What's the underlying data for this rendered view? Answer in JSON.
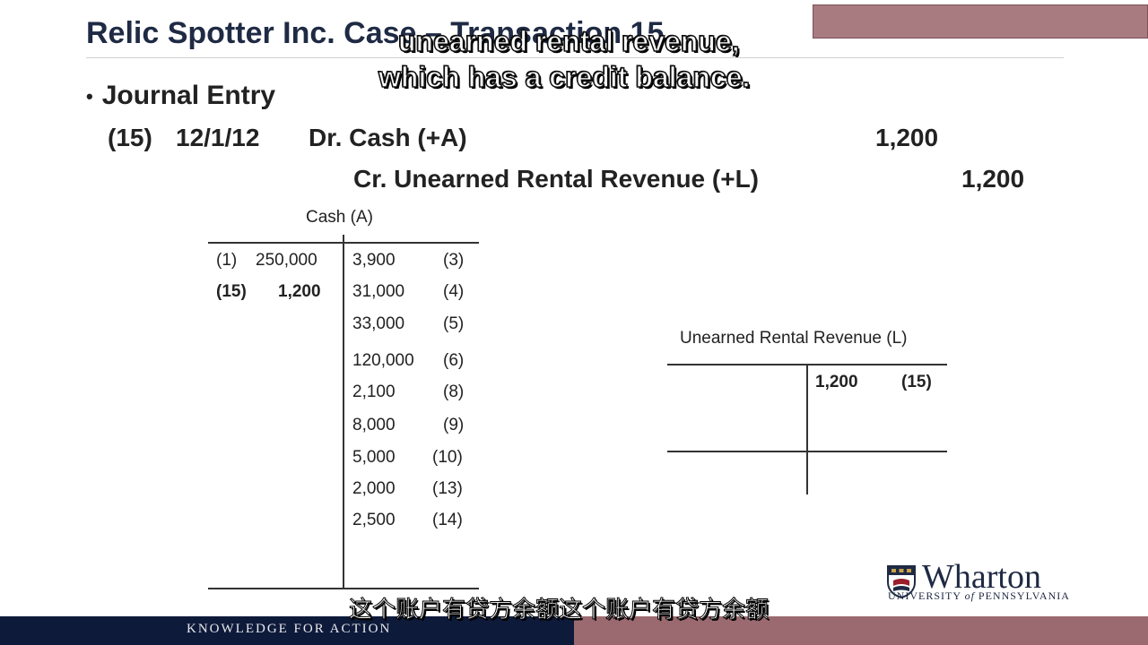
{
  "slide": {
    "title": "Relic Spotter Inc. Case – Transaction 15",
    "caption_line1": "unearned rental revenue,",
    "caption_line2": "which has a credit balance.",
    "bullet_label": "Journal Entry",
    "entry": {
      "number": "(15)",
      "date": "12/1/12",
      "debit_label": "Dr. Cash (+A)",
      "debit_amount": "1,200",
      "credit_label": "Cr. Unearned Rental Revenue (+L)",
      "credit_amount": "1,200"
    }
  },
  "cash_account": {
    "title": "Cash (A)",
    "debits": [
      {
        "ref": "(1)",
        "amount": "250,000",
        "bold": false
      },
      {
        "ref": "(15)",
        "amount": "1,200",
        "bold": true
      }
    ],
    "credits": [
      {
        "amount": "3,900",
        "ref": "(3)"
      },
      {
        "amount": "31,000",
        "ref": "(4)"
      },
      {
        "amount": "33,000",
        "ref": "(5)"
      },
      {
        "amount": "120,000",
        "ref": "(6)"
      },
      {
        "amount": "2,100",
        "ref": "(8)"
      },
      {
        "amount": "8,000",
        "ref": "(9)"
      },
      {
        "amount": "5,000",
        "ref": "(10)"
      },
      {
        "amount": "2,000",
        "ref": "(13)"
      },
      {
        "amount": "2,500",
        "ref": "(14)"
      }
    ]
  },
  "unearned_account": {
    "title": "Unearned Rental Revenue (L)",
    "credits": [
      {
        "amount": "1,200",
        "ref": "(15)"
      }
    ]
  },
  "branding": {
    "logo_word": "Wharton",
    "logo_sub_1": "UNIVERSITY",
    "logo_sub_of": "of",
    "logo_sub_2": "PENNSYLVANIA",
    "footer_tagline": "KNOWLEDGE FOR ACTION"
  },
  "subtitle_cn": "这个账户有贷方余额这个账户有贷方余额",
  "colors": {
    "navy": "#0e1a3a",
    "mauve": "#9b6a70",
    "title": "#1f2a44"
  }
}
